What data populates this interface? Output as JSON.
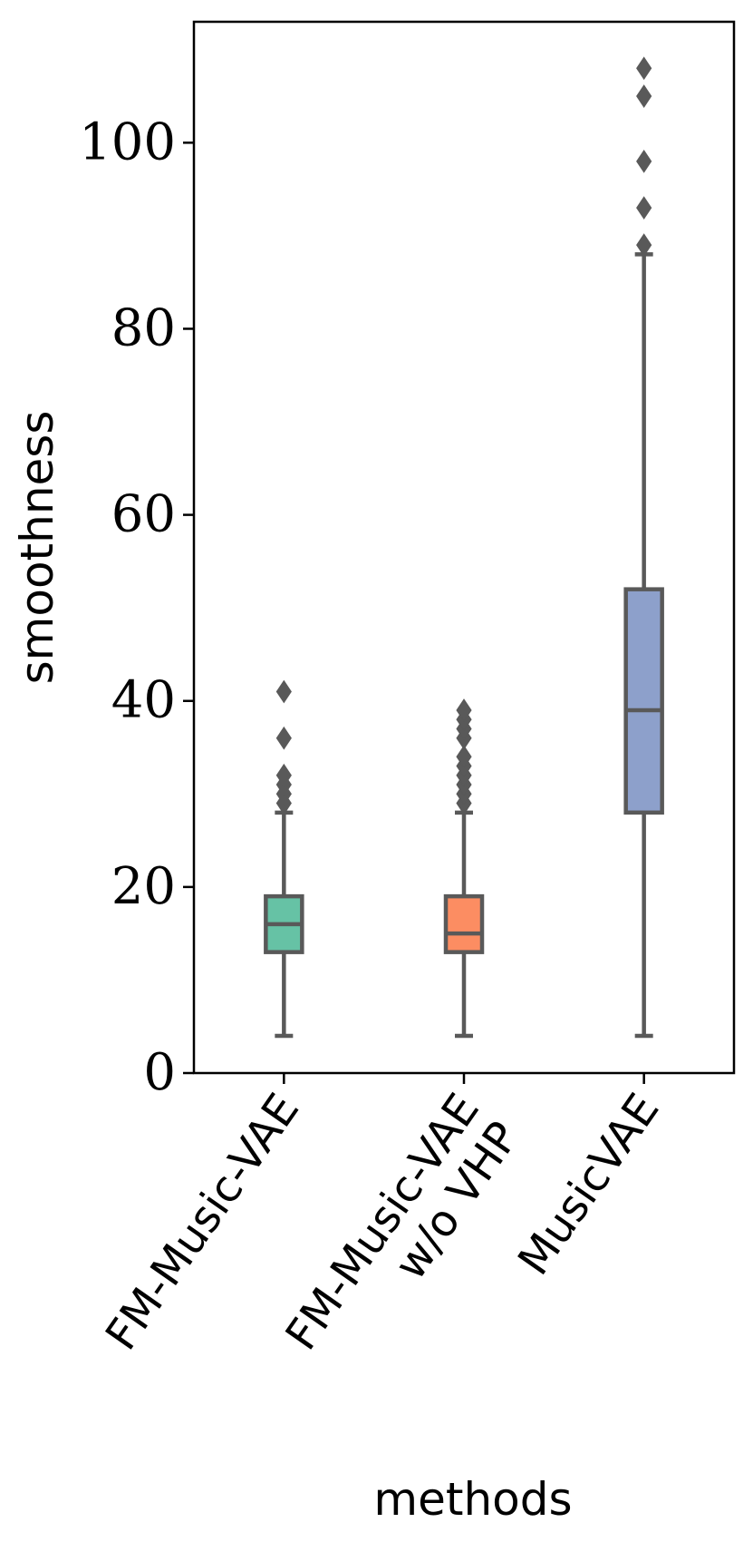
{
  "chart_data": {
    "type": "box",
    "xlabel": "methods",
    "ylabel": "smoothness",
    "ylim": [
      0,
      113
    ],
    "yticks": [
      0,
      20,
      40,
      60,
      80,
      100
    ],
    "yticklabels": [
      "0",
      "20",
      "40",
      "60",
      "80",
      "100"
    ],
    "grid": false,
    "categories": [
      [
        "FM-Music-VAE"
      ],
      [
        "FM-Music-VAE",
        "w/o VHP"
      ],
      [
        "MusicVAE"
      ]
    ],
    "boxes": [
      {
        "whisker_low": 4,
        "q1": 13,
        "median": 16,
        "q3": 19,
        "whisker_high": 28,
        "outliers": [
          29,
          30,
          31,
          32,
          36,
          41
        ],
        "color": "#66c2a5"
      },
      {
        "whisker_low": 4,
        "q1": 13,
        "median": 15,
        "q3": 19,
        "whisker_high": 28,
        "outliers": [
          29,
          30,
          31,
          32,
          33,
          34,
          36,
          37,
          38,
          39
        ],
        "color": "#fc8d62"
      },
      {
        "whisker_low": 4,
        "q1": 28,
        "median": 39,
        "q3": 52,
        "whisker_high": 88,
        "outliers": [
          89,
          93,
          98,
          105,
          108
        ],
        "color": "#8da0cb"
      }
    ],
    "line_color": "#595959"
  }
}
